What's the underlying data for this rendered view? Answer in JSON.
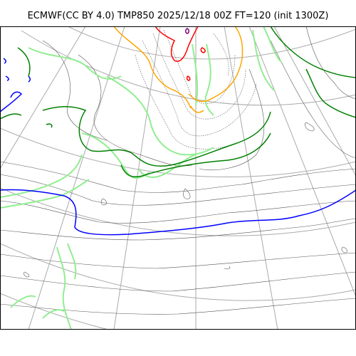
{
  "title": "ECMWF(CC BY 4.0) TMP850 2025/12/18 00Z FT=120 (init 1300Z)",
  "map": {
    "projection": "polar stereographic",
    "graticule": "on",
    "contour_colors": {
      "isotherm_minor": "#555555",
      "isotherm_dotted": "#555555",
      "graticule": "#aaaaaa",
      "light_green": "#90ee90",
      "dark_green": "#008000",
      "orange": "#ffa500",
      "red": "#ff0000",
      "blue": "#0000ff",
      "purple": "#800080",
      "frame": "#000000"
    }
  }
}
